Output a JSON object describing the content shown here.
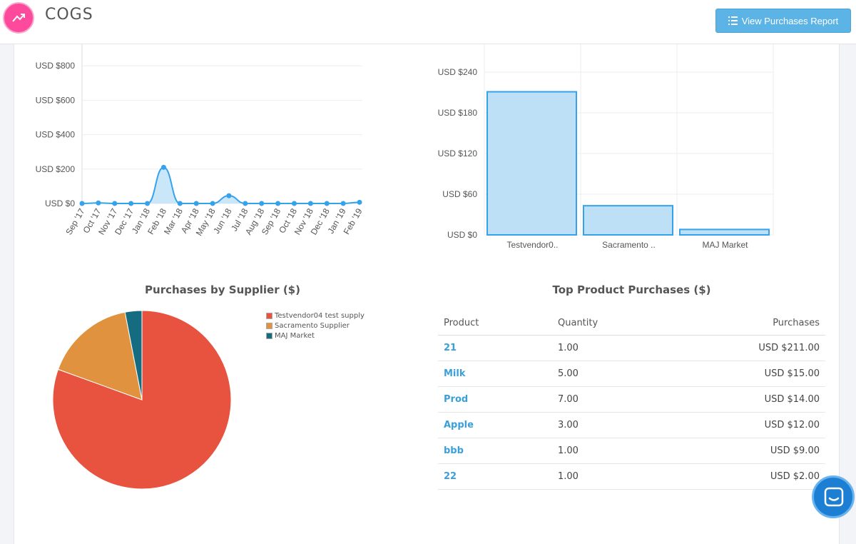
{
  "header": {
    "title": "COGS",
    "report_button_label": "View Purchases Report"
  },
  "colors": {
    "accent": "#5bb4e5",
    "logo": "#fd4a9c",
    "link": "#3aa0dc",
    "line_series": "#36a2eb",
    "bar_fill": "#bde0f7"
  },
  "line_chart": {
    "chart_data": {
      "type": "line",
      "x": [
        "Sep '17",
        "Oct '17",
        "Nov '17",
        "Dec '17",
        "Jan '18",
        "Feb '18",
        "Mar '18",
        "Apr '18",
        "May '18",
        "Jun '18",
        "Jul '18",
        "Aug '18",
        "Sep '18",
        "Oct '18",
        "Nov '18",
        "Dec '18",
        "Jan '19",
        "Feb '19"
      ],
      "series": [
        {
          "values": [
            0,
            3,
            0,
            0,
            0,
            210,
            0,
            0,
            0,
            45,
            0,
            0,
            0,
            0,
            0,
            0,
            0,
            7
          ]
        }
      ],
      "y_ticks": [
        "USD $0",
        "USD $200",
        "USD $400",
        "USD $600",
        "USD $800"
      ],
      "ylim": [
        0,
        800
      ],
      "grid": true
    }
  },
  "bar_chart": {
    "chart_data": {
      "type": "bar",
      "categories": [
        "Testvendor0..",
        "Sacramento ..",
        "MAJ Market"
      ],
      "values": [
        211,
        43,
        8
      ],
      "y_ticks": [
        "USD $0",
        "USD $60",
        "USD $120",
        "USD $180",
        "USD $240"
      ],
      "ylim": [
        0,
        240
      ],
      "grid": true
    }
  },
  "pie_chart": {
    "title": "Purchases by Supplier ($)",
    "chart_data": {
      "type": "pie",
      "labels": [
        "Testvendor04 test supply",
        "Sacramento Supplier",
        "MAJ Market"
      ],
      "values": [
        211,
        43,
        8
      ],
      "colors": [
        "#e8533f",
        "#e0923f",
        "#156c80"
      ],
      "legend": "top-right"
    }
  },
  "products": {
    "title": "Top Product Purchases ($)",
    "columns": [
      "Product",
      "Quantity",
      "Purchases"
    ],
    "rows": [
      {
        "product": "21",
        "quantity": "1.00",
        "purchases": "USD $211.00"
      },
      {
        "product": "Milk",
        "quantity": "5.00",
        "purchases": "USD $15.00"
      },
      {
        "product": "Prod",
        "quantity": "7.00",
        "purchases": "USD $14.00"
      },
      {
        "product": "Apple",
        "quantity": "3.00",
        "purchases": "USD $12.00"
      },
      {
        "product": "bbb",
        "quantity": "1.00",
        "purchases": "USD $9.00"
      },
      {
        "product": "22",
        "quantity": "1.00",
        "purchases": "USD $2.00"
      }
    ]
  },
  "icons": {
    "logo": "trending-up-icon",
    "report_button": "list-icon",
    "chat": "chat-icon"
  }
}
